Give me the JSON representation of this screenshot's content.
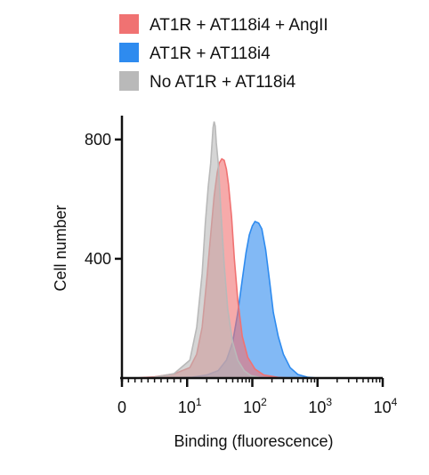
{
  "chart_data": {
    "type": "area",
    "xlabel": "Binding (fluorescence)",
    "ylabel": "Cell number",
    "x_scale": "log",
    "xlim": [
      0,
      10000
    ],
    "ylim": [
      0,
      880
    ],
    "x_ticks": [
      {
        "value": 0,
        "base": "0",
        "exp": ""
      },
      {
        "value": 10,
        "base": "10",
        "exp": "1"
      },
      {
        "value": 100,
        "base": "10",
        "exp": "2"
      },
      {
        "value": 1000,
        "base": "10",
        "exp": "3"
      },
      {
        "value": 10000,
        "base": "10",
        "exp": "4"
      }
    ],
    "y_ticks": [
      {
        "value": 400,
        "label": "400"
      },
      {
        "value": 800,
        "label": "800"
      }
    ],
    "legend_position": "top",
    "series": [
      {
        "name": "No AT1R + AT118i4",
        "color": "#b9b9b9",
        "points": [
          [
            3,
            0
          ],
          [
            5,
            3
          ],
          [
            8,
            15
          ],
          [
            11,
            60
          ],
          [
            14,
            170
          ],
          [
            17,
            350
          ],
          [
            19,
            520
          ],
          [
            21,
            640
          ],
          [
            23,
            720
          ],
          [
            25,
            840
          ],
          [
            26,
            860
          ],
          [
            27,
            845
          ],
          [
            28,
            790
          ],
          [
            30,
            720
          ],
          [
            33,
            560
          ],
          [
            37,
            380
          ],
          [
            42,
            230
          ],
          [
            50,
            120
          ],
          [
            60,
            60
          ],
          [
            75,
            25
          ],
          [
            95,
            8
          ],
          [
            130,
            2
          ],
          [
            200,
            0
          ]
        ]
      },
      {
        "name": "AT1R + AT118i4 + AngII",
        "color": "#f07272",
        "points": [
          [
            2,
            0
          ],
          [
            5,
            4
          ],
          [
            8,
            14
          ],
          [
            11,
            35
          ],
          [
            14,
            80
          ],
          [
            17,
            170
          ],
          [
            20,
            330
          ],
          [
            23,
            480
          ],
          [
            26,
            610
          ],
          [
            29,
            690
          ],
          [
            31,
            720
          ],
          [
            34,
            735
          ],
          [
            37,
            730
          ],
          [
            40,
            700
          ],
          [
            43,
            650
          ],
          [
            48,
            540
          ],
          [
            53,
            400
          ],
          [
            60,
            260
          ],
          [
            70,
            140
          ],
          [
            85,
            70
          ],
          [
            110,
            30
          ],
          [
            150,
            10
          ],
          [
            250,
            2
          ],
          [
            400,
            0
          ]
        ]
      },
      {
        "name": "AT1R + AT118i4",
        "color": "#2e8bef",
        "points": [
          [
            5,
            0
          ],
          [
            12,
            3
          ],
          [
            20,
            10
          ],
          [
            30,
            25
          ],
          [
            40,
            60
          ],
          [
            50,
            120
          ],
          [
            60,
            220
          ],
          [
            70,
            330
          ],
          [
            80,
            420
          ],
          [
            90,
            480
          ],
          [
            100,
            510
          ],
          [
            110,
            525
          ],
          [
            125,
            520
          ],
          [
            140,
            500
          ],
          [
            160,
            430
          ],
          [
            185,
            320
          ],
          [
            210,
            220
          ],
          [
            250,
            140
          ],
          [
            300,
            80
          ],
          [
            380,
            35
          ],
          [
            500,
            12
          ],
          [
            700,
            3
          ],
          [
            1000,
            0
          ]
        ]
      }
    ]
  }
}
